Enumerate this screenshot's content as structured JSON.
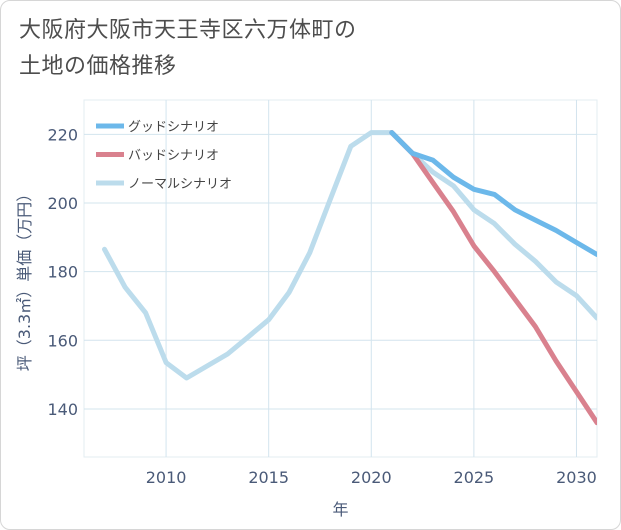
{
  "title": {
    "line1": "大阪府大阪市天王寺区六万体町の",
    "line2": "土地の価格推移"
  },
  "chart_data": {
    "type": "line",
    "xlabel": "年",
    "ylabel": "坪（3.3㎡）単価（万円）",
    "xlim": [
      2006,
      2031
    ],
    "ylim": [
      126,
      230
    ],
    "xticks": [
      2010,
      2015,
      2020,
      2025,
      2030
    ],
    "yticks": [
      140,
      160,
      180,
      200,
      220
    ],
    "grid": true,
    "legend_position": "top-left",
    "series": [
      {
        "name": "グッドシナリオ",
        "color": "#6cb8ea",
        "x": [
          2021,
          2022,
          2023,
          2024,
          2025,
          2026,
          2027,
          2028,
          2029,
          2030,
          2031
        ],
        "values": [
          220.5,
          214.5,
          212.5,
          207.5,
          204,
          202.5,
          198,
          195,
          192,
          188.5,
          185
        ]
      },
      {
        "name": "バッドシナリオ",
        "color": "#d9818e",
        "x": [
          2021,
          2022,
          2023,
          2024,
          2025,
          2026,
          2027,
          2028,
          2029,
          2030,
          2031
        ],
        "values": [
          220.5,
          214.5,
          206,
          197.5,
          187.5,
          180,
          172,
          164,
          154,
          145,
          136
        ]
      },
      {
        "name": "ノーマルシナリオ",
        "color": "#bcdcec",
        "x": [
          2007,
          2008,
          2009,
          2010,
          2011,
          2012,
          2013,
          2014,
          2015,
          2016,
          2017,
          2018,
          2019,
          2020,
          2021,
          2022,
          2023,
          2024,
          2025,
          2026,
          2027,
          2028,
          2029,
          2030,
          2031
        ],
        "values": [
          186.5,
          175.5,
          168,
          153.5,
          149,
          152.5,
          156,
          161,
          166,
          174,
          185.5,
          201,
          216.5,
          220.5,
          220.5,
          214.5,
          209,
          205,
          198,
          194,
          188,
          183,
          177,
          173,
          166.5
        ]
      }
    ]
  }
}
